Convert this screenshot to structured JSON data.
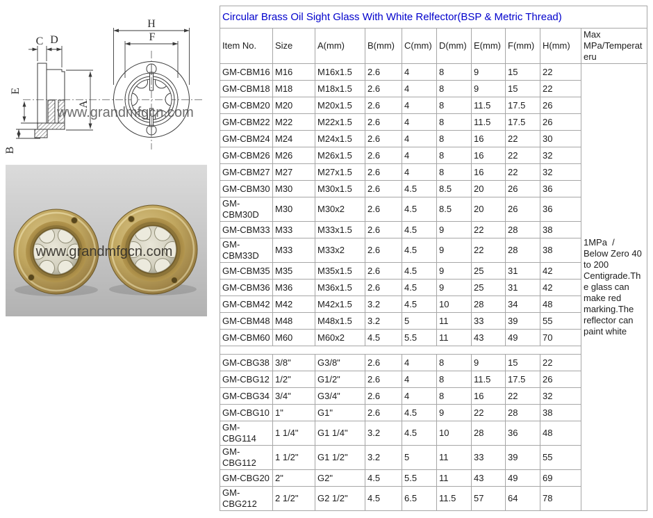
{
  "page": {
    "title": "Circular Brass Oil Sight Glass With White Relfector(BSP & Metric Thread)"
  },
  "table": {
    "headers": [
      "Item No.",
      "Size",
      "A(mm)",
      "B(mm)",
      "C(mm)",
      "D(mm)",
      "E(mm)",
      "F(mm)",
      "H(mm)",
      "Max MPa/Temperateru"
    ],
    "max_note": "1MPa  /\nBelow Zero 40\nto 200\nCentigrade.Th\ne glass can\nmake red\nmarking.The\nreflector can\npaint white",
    "metric_rows": [
      [
        "GM-CBM16",
        "M16",
        "M16x1.5",
        "2.6",
        "4",
        "8",
        "9",
        "15",
        "22"
      ],
      [
        "GM-CBM18",
        "M18",
        "M18x1.5",
        "2.6",
        "4",
        "8",
        "9",
        "15",
        "22"
      ],
      [
        "GM-CBM20",
        "M20",
        "M20x1.5",
        "2.6",
        "4",
        "8",
        "11.5",
        "17.5",
        "26"
      ],
      [
        "GM-CBM22",
        "M22",
        "M22x1.5",
        "2.6",
        "4",
        "8",
        "11.5",
        "17.5",
        "26"
      ],
      [
        "GM-CBM24",
        "M24",
        "M24x1.5",
        "2.6",
        "4",
        "8",
        "16",
        "22",
        "30"
      ],
      [
        "GM-CBM26",
        "M26",
        "M26x1.5",
        "2.6",
        "4",
        "8",
        "16",
        "22",
        "32"
      ],
      [
        "GM-CBM27",
        "M27",
        "M27x1.5",
        "2.6",
        "4",
        "8",
        "16",
        "22",
        "32"
      ],
      [
        "GM-CBM30",
        "M30",
        "M30x1.5",
        "2.6",
        "4.5",
        "8.5",
        "20",
        "26",
        "36"
      ],
      [
        "GM-\nCBM30D",
        "M30",
        "M30x2",
        "2.6",
        "4.5",
        "8.5",
        "20",
        "26",
        "36"
      ],
      [
        "GM-CBM33",
        "M33",
        "M33x1.5",
        "2.6",
        "4.5",
        "9",
        "22",
        "28",
        "38"
      ],
      [
        "GM-\nCBM33D",
        "M33",
        "M33x2",
        "2.6",
        "4.5",
        "9",
        "22",
        "28",
        "38"
      ],
      [
        "GM-CBM35",
        "M35",
        "M35x1.5",
        "2.6",
        "4.5",
        "9",
        "25",
        "31",
        "42"
      ],
      [
        "GM-CBM36",
        "M36",
        "M36x1.5",
        "2.6",
        "4.5",
        "9",
        "25",
        "31",
        "42"
      ],
      [
        "GM-CBM42",
        "M42",
        "M42x1.5",
        "3.2",
        "4.5",
        "10",
        "28",
        "34",
        "48"
      ],
      [
        "GM-CBM48",
        "M48",
        "M48x1.5",
        "3.2",
        "5",
        "11",
        "33",
        "39",
        "55"
      ],
      [
        "GM-CBM60",
        "M60",
        "M60x2",
        "4.5",
        "5.5",
        "11",
        "43",
        "49",
        "70"
      ]
    ],
    "bsp_rows": [
      [
        "GM-CBG38",
        "3/8\"",
        "G3/8\"",
        "2.6",
        "4",
        "8",
        "9",
        "15",
        "22"
      ],
      [
        "GM-CBG12",
        "1/2\"",
        "G1/2\"",
        "2.6",
        "4",
        "8",
        "11.5",
        "17.5",
        "26"
      ],
      [
        "GM-CBG34",
        "3/4\"",
        "G3/4\"",
        "2.6",
        "4",
        "8",
        "16",
        "22",
        "32"
      ],
      [
        "GM-CBG10",
        "1\"",
        "G1\"",
        "2.6",
        "4.5",
        "9",
        "22",
        "28",
        "38"
      ],
      [
        "GM-CBG114",
        "1 1/4\"",
        "G1 1/4\"",
        "3.2",
        "4.5",
        "10",
        "28",
        "36",
        "48"
      ],
      [
        "GM-CBG112",
        "1 1/2\"",
        "G1 1/2\"",
        "3.2",
        "5",
        "11",
        "33",
        "39",
        "55"
      ],
      [
        "GM-CBG20",
        "2\"",
        "G2\"",
        "4.5",
        "5.5",
        "11",
        "43",
        "49",
        "69"
      ],
      [
        "GM-\nCBG212",
        "2 1/2\"",
        "G2 1/2\"",
        "4.5",
        "6.5",
        "11.5",
        "57",
        "64",
        "78"
      ]
    ]
  },
  "drawing": {
    "watermark": "www.grandmfgcn.com",
    "labels": {
      "c": "C",
      "d": "D",
      "e": "E",
      "a": "A",
      "b": "B",
      "h": "H",
      "f": "F"
    }
  },
  "photo": {
    "watermark": "www.grandmfgcn.com"
  },
  "colors": {
    "title_blue": "#0000cc",
    "table_border": "#a6a6a6",
    "brass": "#c0a65f",
    "photo_background": "#c4c4c4"
  }
}
